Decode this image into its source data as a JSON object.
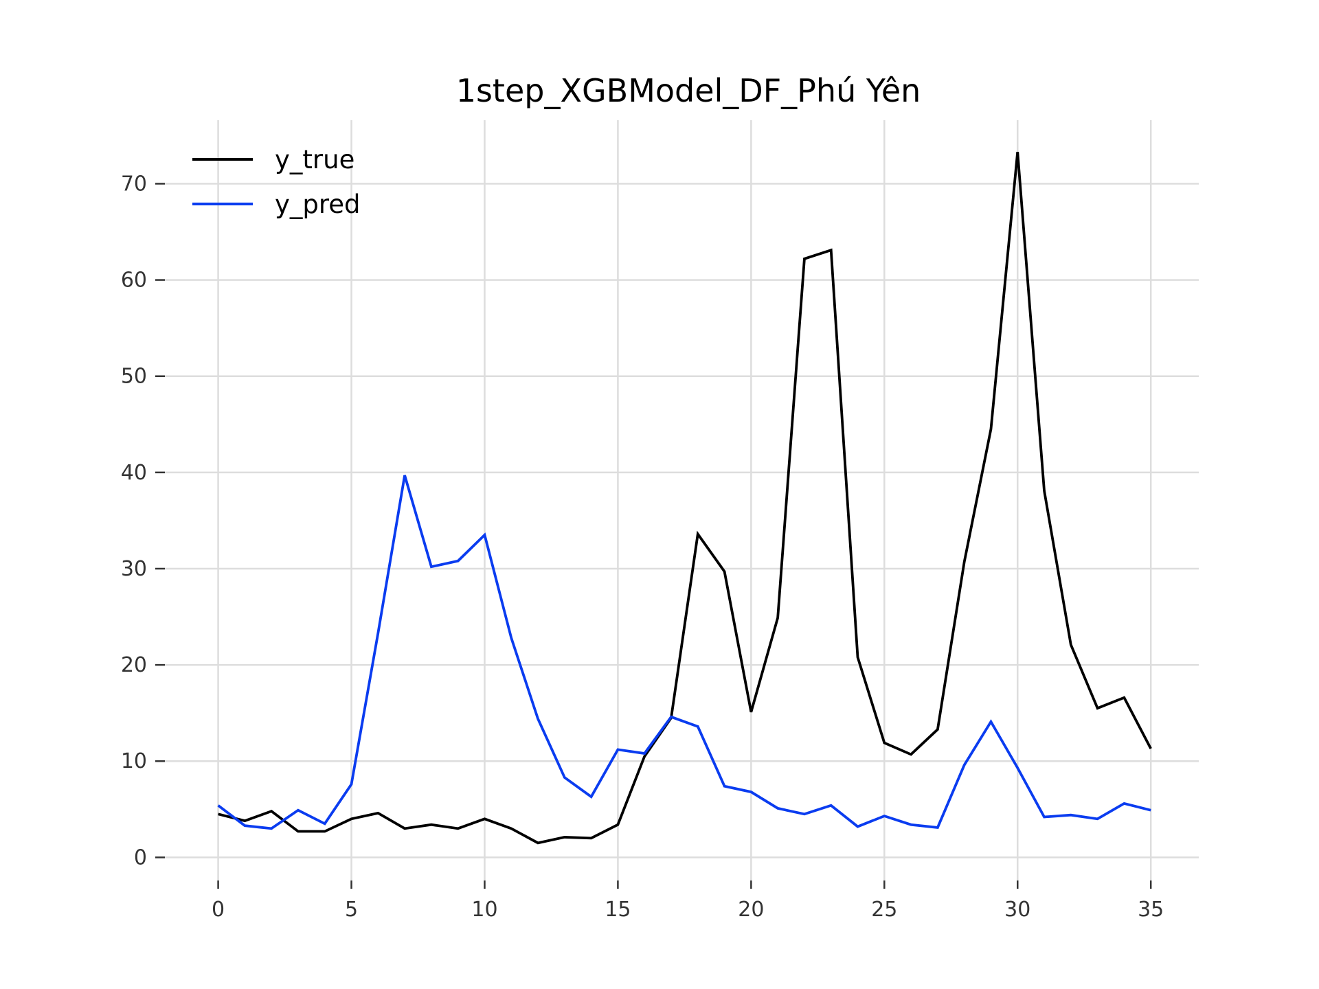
{
  "chart_data": {
    "type": "line",
    "title": "1step_XGBModel_DF_Phú Yên",
    "xlabel": "",
    "ylabel": "",
    "xlim": [
      -2,
      36.8
    ],
    "ylim": [
      -2.4,
      76.6
    ],
    "grid": true,
    "legend_position": "top-left",
    "x_ticks": [
      0,
      5,
      10,
      15,
      20,
      25,
      30,
      35
    ],
    "y_ticks": [
      0,
      10,
      20,
      30,
      40,
      50,
      60,
      70
    ],
    "x": [
      0,
      1,
      2,
      3,
      4,
      5,
      6,
      7,
      8,
      9,
      10,
      11,
      12,
      13,
      14,
      15,
      16,
      17,
      18,
      19,
      20,
      21,
      22,
      23,
      24,
      25,
      26,
      27,
      28,
      29,
      30,
      31,
      32,
      33,
      34,
      35
    ],
    "series": [
      {
        "name": "y_true",
        "color": "#000000",
        "values": [
          4.5,
          3.8,
          4.8,
          2.7,
          2.7,
          4.0,
          4.6,
          3.0,
          3.4,
          3.0,
          4.0,
          3.0,
          1.5,
          2.1,
          2.0,
          3.4,
          10.5,
          14.5,
          33.6,
          29.7,
          15.1,
          24.9,
          62.2,
          63.1,
          20.8,
          11.9,
          10.7,
          13.3,
          30.7,
          44.5,
          73.3,
          38.1,
          22.1,
          15.5,
          16.6,
          11.3
        ]
      },
      {
        "name": "y_pred",
        "color": "#0a3cf0",
        "values": [
          5.4,
          3.3,
          3.0,
          4.9,
          3.5,
          7.6,
          23.3,
          39.7,
          30.2,
          30.8,
          33.5,
          22.8,
          14.4,
          8.3,
          6.3,
          11.2,
          10.8,
          14.6,
          13.6,
          7.4,
          6.8,
          5.1,
          4.5,
          5.4,
          3.2,
          4.3,
          3.4,
          3.1,
          9.6,
          14.1,
          9.3,
          4.2,
          4.4,
          4.0,
          5.6,
          4.9
        ]
      }
    ]
  }
}
